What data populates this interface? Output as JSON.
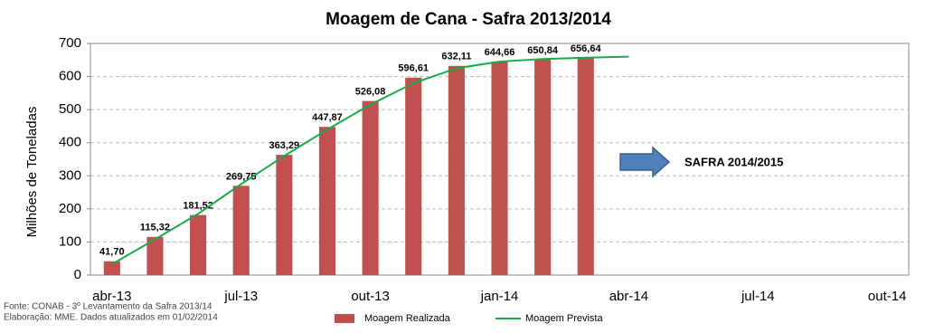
{
  "chart_data": {
    "type": "bar",
    "title": "Moagem de Cana - Safra 2013/2014",
    "y_label": "Milhões de Toneladas",
    "categories": [
      "abr-13",
      null,
      null,
      "jul-13",
      null,
      null,
      "out-13",
      null,
      null,
      "jan-14",
      null,
      null,
      "abr-14",
      null,
      null,
      "jul-14",
      null,
      null,
      "out-14"
    ],
    "series": [
      {
        "name": "Moagem Realizada",
        "type": "bar",
        "color": "#c0504d",
        "values": [
          41.7,
          115.32,
          181.52,
          269.75,
          363.29,
          447.87,
          526.08,
          596.61,
          632.11,
          644.66,
          650.84,
          656.64,
          null,
          null,
          null,
          null,
          null,
          null,
          null
        ],
        "value_labels": [
          "41,70",
          "115,32",
          "181,52",
          "269,75",
          "363,29",
          "447,87",
          "526,08",
          "596,61",
          "632,11",
          "644,66",
          "650,84",
          "656,64",
          null,
          null,
          null,
          null,
          null,
          null,
          null
        ]
      },
      {
        "name": "Moagem Prevista",
        "type": "line",
        "color": "#1aaa4a",
        "values": [
          33,
          108,
          185,
          275,
          360,
          440,
          515,
          580,
          625,
          645,
          653,
          657,
          660,
          null,
          null,
          null,
          null,
          null,
          null
        ]
      }
    ],
    "ylim": [
      0,
      700
    ],
    "yticks": [
      0,
      100,
      200,
      300,
      400,
      500,
      600,
      700
    ],
    "grid": true,
    "annotation": "SAFRA 2014/2015",
    "notes": [
      "Fonte: CONAB - 3º Levantamento da Safra 2013/14",
      "Elaboração: MME. Dados atualizados em 01/02/2014"
    ]
  }
}
